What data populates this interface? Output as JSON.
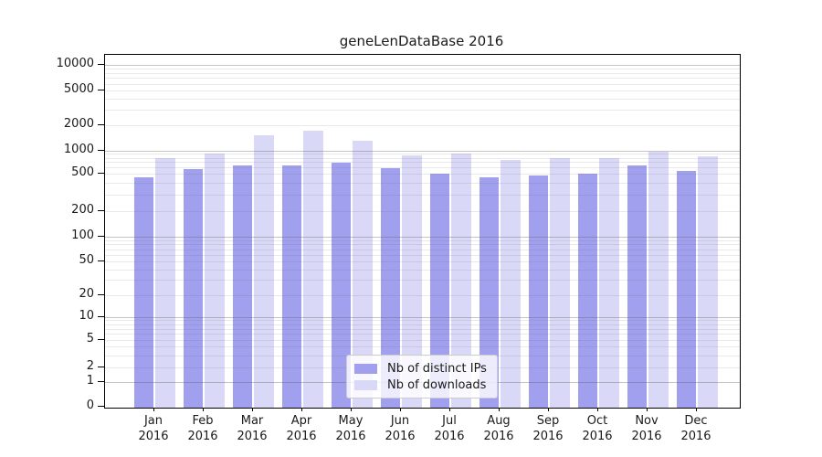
{
  "title": "geneLenDataBase 2016",
  "legend": {
    "items": [
      {
        "label": "Nb of distinct IPs",
        "color": "#a0a0ee"
      },
      {
        "label": "Nb of downloads",
        "color": "#d9d9f7"
      }
    ]
  },
  "colors": {
    "distinct_ips": "#a0a0ee",
    "downloads": "#d9d9f7",
    "grid_major": "#c6c6c6",
    "grid_minor": "#e9e9e9",
    "spine": "#000000"
  },
  "y_axis": {
    "tick_labels": [
      "10000",
      "5000",
      "2000",
      "1000",
      "500",
      "200",
      "100",
      "50",
      "20",
      "10",
      "5",
      "2",
      "1",
      "0"
    ]
  },
  "x_axis": {
    "tick_labels_line1": [
      "Jan",
      "Feb",
      "Mar",
      "Apr",
      "May",
      "Jun",
      "Jul",
      "Aug",
      "Sep",
      "Oct",
      "Nov",
      "Dec"
    ],
    "tick_labels_line2": [
      "2016",
      "2016",
      "2016",
      "2016",
      "2016",
      "2016",
      "2016",
      "2016",
      "2016",
      "2016",
      "2016",
      "2016"
    ]
  },
  "chart_data": {
    "type": "bar",
    "title": "geneLenDataBase 2016",
    "categories": [
      "Jan 2016",
      "Feb 2016",
      "Mar 2016",
      "Apr 2016",
      "May 2016",
      "Jun 2016",
      "Jul 2016",
      "Aug 2016",
      "Sep 2016",
      "Oct 2016",
      "Nov 2016",
      "Dec 2016"
    ],
    "series": [
      {
        "name": "Nb of distinct IPs",
        "color": "#a0a0ee",
        "values": [
          450,
          560,
          630,
          640,
          680,
          580,
          490,
          450,
          470,
          500,
          630,
          530
        ]
      },
      {
        "name": "Nb of downloads",
        "color": "#d9d9f7",
        "values": [
          800,
          910,
          1500,
          1700,
          1290,
          850,
          900,
          740,
          780,
          790,
          960,
          830
        ]
      }
    ],
    "xlabel": "",
    "ylabel": "",
    "yscale": "symlog",
    "yticks": [
      0,
      1,
      2,
      5,
      10,
      20,
      50,
      100,
      200,
      500,
      1000,
      2000,
      5000,
      10000
    ],
    "ylim": [
      0,
      13000
    ],
    "grid": "horizontal major+minor, drawn over bars",
    "legend_position": "lower center inside plot"
  }
}
